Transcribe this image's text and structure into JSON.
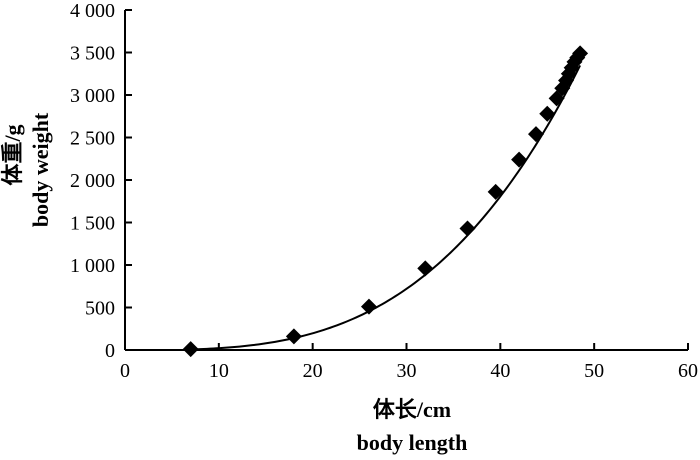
{
  "chart_data": {
    "type": "scatter",
    "xlabel_zh": "体长/cm",
    "xlabel_en": "body length",
    "ylabel_zh": "体重/g",
    "ylabel_en": "body weight",
    "xlim": [
      0,
      60
    ],
    "ylim": [
      0,
      4000
    ],
    "x_ticks": [
      0,
      10,
      20,
      30,
      40,
      50,
      60
    ],
    "x_tick_labels": [
      "0",
      "10",
      "20",
      "30",
      "40",
      "50",
      "60"
    ],
    "y_ticks": [
      0,
      500,
      1000,
      1500,
      2000,
      2500,
      3000,
      3500,
      4000
    ],
    "y_tick_labels": [
      "0",
      "500",
      "1 000",
      "1 500",
      "2 000",
      "2 500",
      "3 000",
      "3 500",
      "4 000"
    ],
    "grid": false,
    "marker": "diamond",
    "colors": {
      "marker": "#000000",
      "line": "#000000",
      "axis": "#000000"
    },
    "points": [
      {
        "x": 7,
        "y": 10
      },
      {
        "x": 18,
        "y": 160
      },
      {
        "x": 26,
        "y": 510
      },
      {
        "x": 32,
        "y": 960
      },
      {
        "x": 36.5,
        "y": 1430
      },
      {
        "x": 39.5,
        "y": 1860
      },
      {
        "x": 42,
        "y": 2240
      },
      {
        "x": 43.8,
        "y": 2540
      },
      {
        "x": 45,
        "y": 2780
      },
      {
        "x": 46,
        "y": 2960
      },
      {
        "x": 46.6,
        "y": 3080
      },
      {
        "x": 47,
        "y": 3170
      },
      {
        "x": 47.3,
        "y": 3250
      },
      {
        "x": 47.6,
        "y": 3320
      },
      {
        "x": 47.9,
        "y": 3390
      },
      {
        "x": 48.2,
        "y": 3440
      },
      {
        "x": 48.5,
        "y": 3490
      }
    ],
    "fit_curve": {
      "type": "power",
      "description": "smooth fitted curve through the points",
      "a": 0.0135,
      "b": 3.2,
      "x_range": [
        7,
        48.5
      ]
    }
  }
}
